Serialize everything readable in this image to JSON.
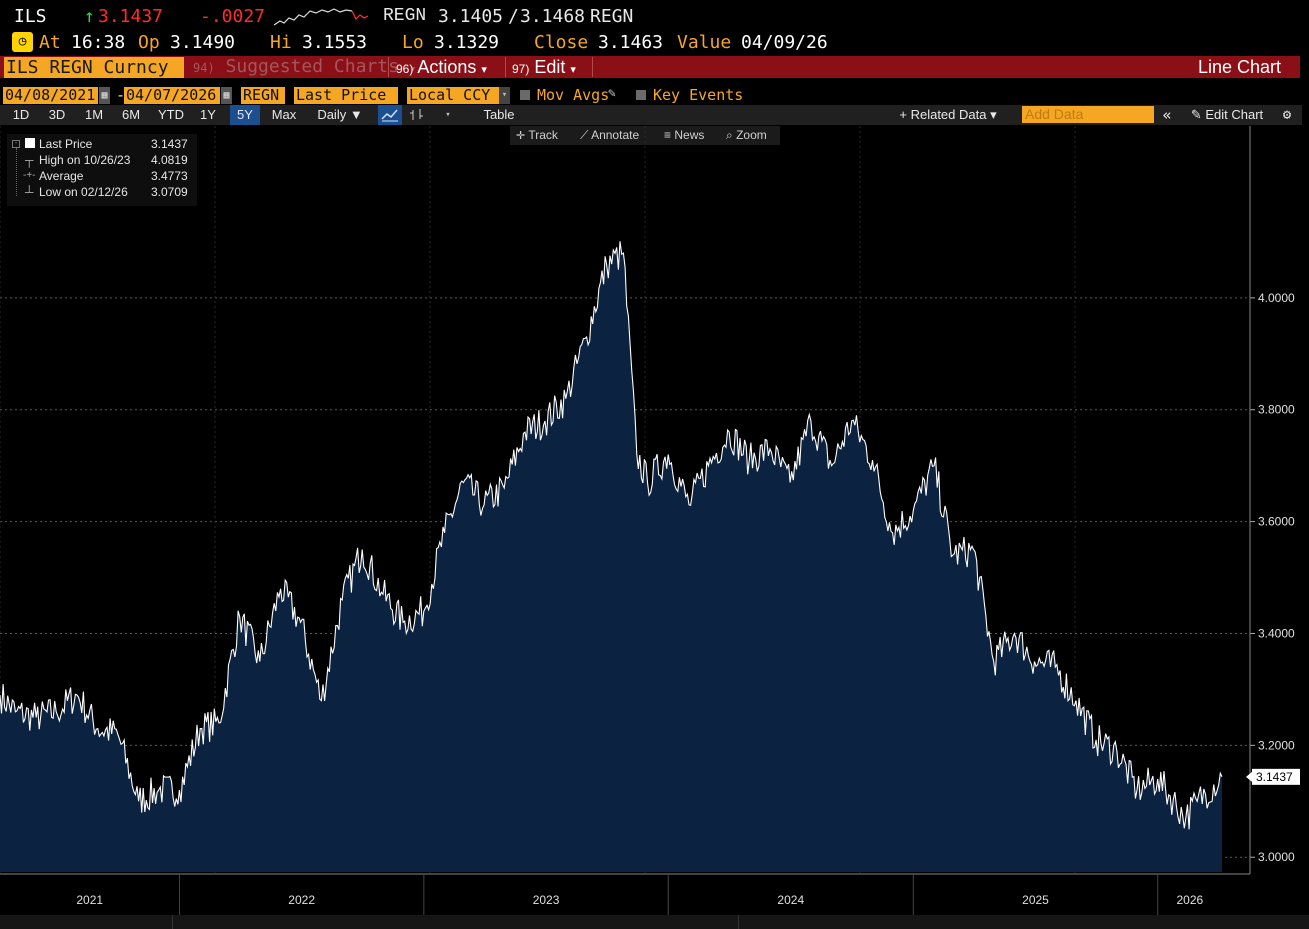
{
  "quote": {
    "symbol": "ILS",
    "arrow": "↑",
    "last": "3.1437",
    "change": "-.0027",
    "source": "REGN",
    "bid": "3.1405",
    "slash": "/",
    "ask": "3.1468",
    "source2": "REGN",
    "at_label": "At",
    "time": "16:38",
    "open_label": "Op",
    "open": "3.1490",
    "hi_label": "Hi",
    "hi": "3.1553",
    "lo_label": "Lo",
    "lo": "3.1329",
    "close_label": "Close",
    "close": "3.1463",
    "value_label": "Value",
    "value_date": "04/09/26"
  },
  "command_bar": {
    "ticker": "ILS REGN Curncy",
    "suggested_num": "94)",
    "suggested_label": "Suggested Charts",
    "actions_num": "96)",
    "actions_label": "Actions",
    "edit_num": "97)",
    "edit_label": "Edit",
    "chart_type": "Line Chart",
    "caret": "▾"
  },
  "params": {
    "start_date": "04/08/2021",
    "dash": "-",
    "end_date": "04/07/2026",
    "source": "REGN",
    "field": "Last Price",
    "currency": "Local CCY",
    "mov_avgs": "Mov Avgs",
    "key_events": "Key Events"
  },
  "toolbar": {
    "periods": [
      "1D",
      "3D",
      "1M",
      "6M",
      "YTD",
      "1Y",
      "5Y",
      "Max"
    ],
    "selected_period": "5Y",
    "frequency": "Daily ▼",
    "table": "Table",
    "related_data": "+ Related Data ▾",
    "add_data_placeholder": "Add Data",
    "edit_chart": "Edit Chart"
  },
  "tools": {
    "track": "Track",
    "annotate": "Annotate",
    "news": "News",
    "zoom": "Zoom"
  },
  "legend": {
    "last_label": "Last Price",
    "last_value": "3.1437",
    "high_label": "High on 10/26/23",
    "high_value": "4.0819",
    "avg_label": "Average",
    "avg_value": "3.4773",
    "low_label": "Low on 02/12/26",
    "low_value": "3.0709"
  },
  "colors": {
    "area_fill": "#0b2240",
    "line": "#ffffff",
    "accent": "#f5a623",
    "command_bar": "#8a0f16",
    "up": "#33dd33",
    "down": "#ff2a2a"
  },
  "chart_data": {
    "type": "area",
    "series": [
      {
        "name": "Last Price",
        "x": [
          "2021-04-08",
          "2021-05-01",
          "2021-06-01",
          "2021-07-01",
          "2021-08-01",
          "2021-09-01",
          "2021-10-01",
          "2021-11-01",
          "2021-12-01",
          "2022-01-01",
          "2022-02-01",
          "2022-03-01",
          "2022-04-01",
          "2022-05-01",
          "2022-06-01",
          "2022-07-01",
          "2022-08-01",
          "2022-09-01",
          "2022-10-01",
          "2022-11-01",
          "2022-12-01",
          "2023-01-01",
          "2023-02-01",
          "2023-03-01",
          "2023-04-01",
          "2023-05-01",
          "2023-06-01",
          "2023-07-01",
          "2023-08-01",
          "2023-09-01",
          "2023-10-01",
          "2023-10-26",
          "2023-11-15",
          "2023-12-01",
          "2024-01-01",
          "2024-02-01",
          "2024-03-01",
          "2024-04-01",
          "2024-05-01",
          "2024-06-01",
          "2024-07-01",
          "2024-08-01",
          "2024-09-01",
          "2024-10-01",
          "2024-11-01",
          "2024-12-01",
          "2025-01-01",
          "2025-02-01",
          "2025-03-01",
          "2025-04-01",
          "2025-05-01",
          "2025-06-01",
          "2025-07-01",
          "2025-08-01",
          "2025-09-01",
          "2025-10-01",
          "2025-11-01",
          "2025-12-01",
          "2026-01-01",
          "2026-02-12",
          "2026-03-01",
          "2026-04-07"
        ],
        "values": [
          3.29,
          3.26,
          3.25,
          3.26,
          3.29,
          3.23,
          3.22,
          3.1,
          3.12,
          3.12,
          3.23,
          3.24,
          3.43,
          3.35,
          3.48,
          3.42,
          3.28,
          3.46,
          3.55,
          3.47,
          3.42,
          3.44,
          3.58,
          3.67,
          3.63,
          3.66,
          3.76,
          3.78,
          3.82,
          3.93,
          4.06,
          4.08,
          3.72,
          3.67,
          3.72,
          3.63,
          3.7,
          3.76,
          3.71,
          3.73,
          3.67,
          3.78,
          3.7,
          3.78,
          3.71,
          3.58,
          3.62,
          3.7,
          3.54,
          3.55,
          3.35,
          3.4,
          3.35,
          3.34,
          3.28,
          3.21,
          3.19,
          3.12,
          3.14,
          3.07,
          3.1,
          3.1437
        ]
      }
    ],
    "xlabels": [
      "2021",
      "2022",
      "2023",
      "2024",
      "2025",
      "2026"
    ],
    "yticks": [
      "3.0000",
      "3.2000",
      "3.4000",
      "3.6000",
      "3.8000",
      "4.0000"
    ],
    "ylim": [
      2.97,
      4.2
    ],
    "last_label": "3.1437",
    "grid": true
  }
}
